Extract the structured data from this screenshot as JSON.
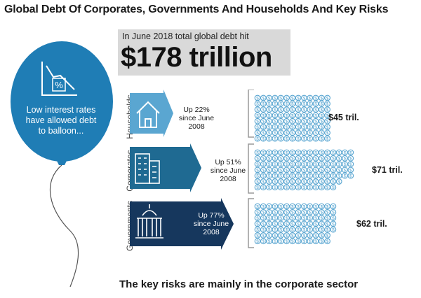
{
  "title": "Global Debt Of Corporates, Governments And Households And Key Risks",
  "headline": {
    "small": "In June 2018 total global debt hit",
    "big": "$178 trillion"
  },
  "balloon_text": [
    "Low interest rates",
    "have allowed debt",
    "to balloon..."
  ],
  "rows": [
    {
      "label": "Households",
      "icon": "house-icon",
      "change": [
        "Up 22%",
        "since June",
        "2008"
      ],
      "total": "$45 tril.",
      "color": "#5aa6d1",
      "coin_grid": [
        [
          13,
          13,
          13,
          13,
          13,
          13,
          13,
          13
        ],
        8
      ]
    },
    {
      "label": "Corporates",
      "icon": "office-building-icon",
      "change": [
        "Up 51%",
        "since June",
        "2008"
      ],
      "total": "$71 tril.",
      "color": "#1f6a92",
      "coin_grid": [
        [
          17,
          17,
          17,
          17,
          17,
          15,
          14
        ],
        7
      ]
    },
    {
      "label": "Governments",
      "icon": "capitol-building-icon",
      "change": [
        "Up 77%",
        "since June",
        "2008"
      ],
      "total": "$62 tril.",
      "color": "#16375d",
      "coin_grid": [
        [
          14,
          14,
          14,
          14,
          14,
          13,
          13
        ],
        7
      ]
    }
  ],
  "bottom_note": "The key risks are mainly in the corporate sector",
  "colors": {
    "balloon": "#1f7db5",
    "coin": "#5aa6d1"
  }
}
